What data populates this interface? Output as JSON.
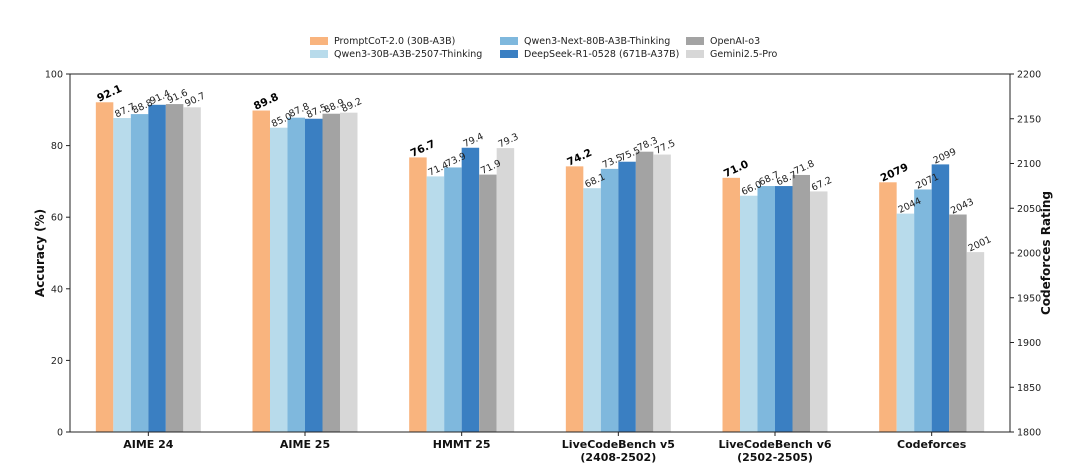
{
  "chart_data": {
    "type": "bar",
    "categories": [
      "AIME 24",
      "AIME 25",
      "HMMT 25",
      "LiveCodeBench v5\n(2408-2502)",
      "LiveCodeBench v6\n(2502-2505)",
      "Codeforces"
    ],
    "ylabel": "Accuracy (%)",
    "y2label": "Codeforces Rating",
    "ylim": [
      0,
      100
    ],
    "y2lim": [
      1800,
      2200
    ],
    "yticks": [
      0,
      20,
      40,
      60,
      80,
      100
    ],
    "y2ticks": [
      1800,
      1850,
      1900,
      1950,
      2000,
      2050,
      2100,
      2150,
      2200
    ],
    "secondary_axis_categories": [
      "Codeforces"
    ],
    "legend_placement": "top-center",
    "grid": false,
    "series": [
      {
        "name": "PromptCoT-2.0 (30B-A3B)",
        "color": "#f9b47e",
        "bold_labels": true,
        "values": [
          92.1,
          89.8,
          76.7,
          74.2,
          71.0,
          2079
        ],
        "labels": [
          "92.1",
          "89.8",
          "76.7",
          "74.2",
          "71.0",
          "2079"
        ]
      },
      {
        "name": "Qwen3-30B-A3B-2507-Thinking",
        "color": "#b8dbeb",
        "values": [
          87.7,
          85.0,
          71.4,
          68.1,
          66.0,
          2044
        ],
        "labels": [
          "87.7",
          "85.0",
          "71.4",
          "68.1",
          "66.0",
          "2044"
        ]
      },
      {
        "name": "Qwen3-Next-80B-A3B-Thinking",
        "color": "#7fb8dd",
        "values": [
          88.8,
          87.8,
          73.9,
          73.5,
          68.7,
          2071
        ],
        "labels": [
          "88.8",
          "87.8",
          "73.9",
          "73.5",
          "68.7",
          "2071"
        ]
      },
      {
        "name": "DeepSeek-R1-0528 (671B-A37B)",
        "color": "#3a7fc2",
        "values": [
          91.4,
          87.5,
          79.4,
          75.5,
          68.7,
          2099
        ],
        "labels": [
          "91.4",
          "87.5",
          "79.4",
          "75.5",
          "68.7",
          "2099"
        ]
      },
      {
        "name": "OpenAI-o3",
        "color": "#a3a3a3",
        "values": [
          91.6,
          88.9,
          71.9,
          78.3,
          71.8,
          2043
        ],
        "labels": [
          "91.6",
          "88.9",
          "71.9",
          "78.3",
          "71.8",
          "2043"
        ]
      },
      {
        "name": "Gemini2.5-Pro",
        "color": "#d7d7d7",
        "values": [
          90.7,
          89.2,
          79.3,
          77.5,
          67.2,
          2001
        ],
        "labels": [
          "90.7",
          "89.2",
          "79.3",
          "77.5",
          "67.2",
          "2001"
        ]
      }
    ]
  }
}
